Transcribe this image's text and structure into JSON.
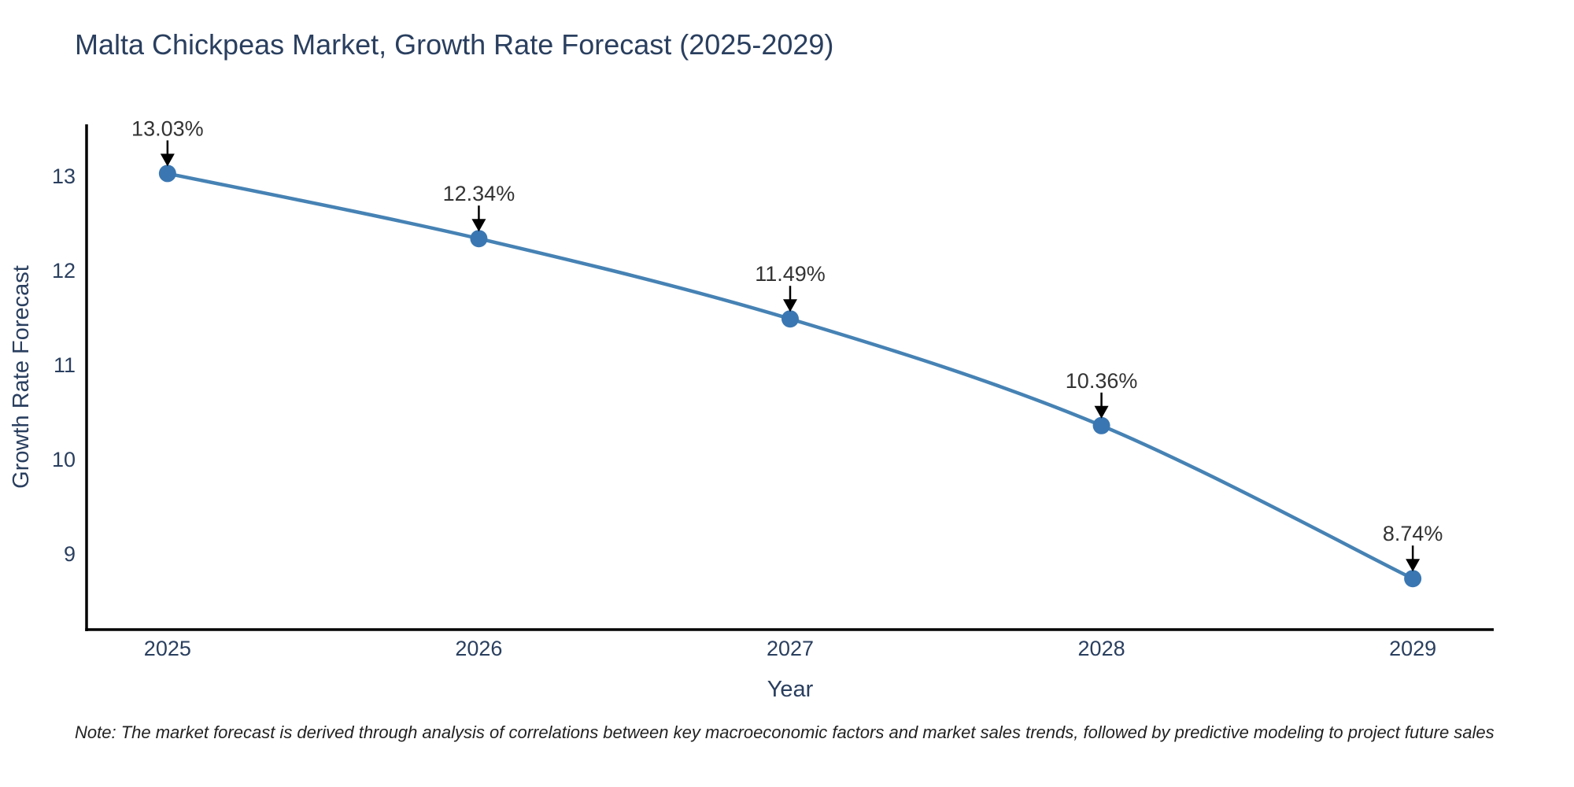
{
  "title": "Malta Chickpeas Market, Growth Rate Forecast (2025-2029)",
  "note": "Note: The market forecast is derived through analysis of correlations between key macroeconomic factors and market sales trends, followed by predictive modeling to project future sales",
  "chart_data": {
    "type": "line",
    "title": "Malta Chickpeas Market, Growth Rate Forecast (2025-2029)",
    "xlabel": "Year",
    "ylabel": "Growth Rate Forecast",
    "x": [
      2025,
      2026,
      2027,
      2028,
      2029
    ],
    "values": [
      13.03,
      12.34,
      11.49,
      10.36,
      8.74
    ],
    "point_labels": [
      "13.03%",
      "12.34%",
      "11.49%",
      "10.36%",
      "8.74%"
    ],
    "xticks": [
      "2025",
      "2026",
      "2027",
      "2028",
      "2029"
    ],
    "xtick_values": [
      2025,
      2026,
      2027,
      2028,
      2029
    ],
    "yticks": [
      "9",
      "10",
      "11",
      "12",
      "13"
    ],
    "ytick_values": [
      9,
      10,
      11,
      12,
      13
    ],
    "xlim": [
      2024.74,
      2029.26
    ],
    "ylim": [
      8.2,
      13.55
    ],
    "grid": false,
    "legend": "none",
    "colors": {
      "line": "#4682b4",
      "marker": "#3a77b2",
      "axis": "#000000",
      "tick_label": "#2a3f5f",
      "axis_label": "#2a3f5f",
      "title": "#2a3f5f",
      "annotation_text": "#333333",
      "annotation_arrow": "#000000"
    }
  }
}
